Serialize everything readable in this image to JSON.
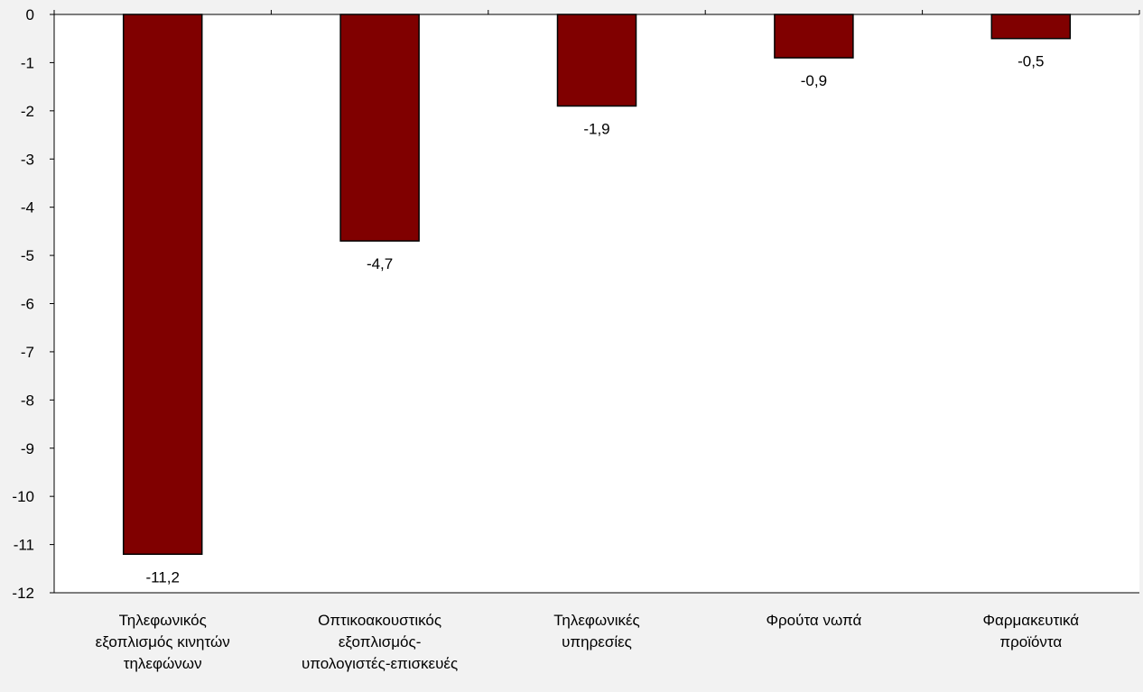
{
  "chart_data": {
    "type": "bar",
    "categories": [
      "Τηλεφωνικός εξοπλισμός κινητών τηλεφώνων",
      "Οπτικοακουστικός εξοπλισμός- υπολογιστές-επισκευές",
      "Τηλεφωνικές υπηρεσίες",
      "Φρούτα νωπά",
      "Φαρμακευτικά προϊόντα"
    ],
    "category_lines": [
      [
        "Τηλεφωνικός",
        "εξοπλισμός κινητών",
        "τηλεφώνων"
      ],
      [
        "Οπτικοακουστικός",
        "εξοπλισμός-",
        "υπολογιστές-επισκευές"
      ],
      [
        "Τηλεφωνικές",
        "υπηρεσίες"
      ],
      [
        "Φρούτα νωπά"
      ],
      [
        "Φαρμακευτικά",
        "προϊόντα"
      ]
    ],
    "values": [
      -11.2,
      -4.7,
      -1.9,
      -0.9,
      -0.5
    ],
    "data_labels": [
      "-11,2",
      "-4,7",
      "-1,9",
      "-0,9",
      "-0,5"
    ],
    "ylim": [
      -12,
      0
    ],
    "yticks": [
      0,
      -1,
      -2,
      -3,
      -4,
      -5,
      -6,
      -7,
      -8,
      -9,
      -10,
      -11,
      -12
    ],
    "title": "",
    "xlabel": "",
    "ylabel": "",
    "grid": false,
    "legend": "none",
    "colors": {
      "bar_fill": "#800000",
      "bar_stroke": "#000000",
      "plot_background": "#ffffff",
      "page_background": "#f2f2f2",
      "axis": "#000000"
    }
  }
}
